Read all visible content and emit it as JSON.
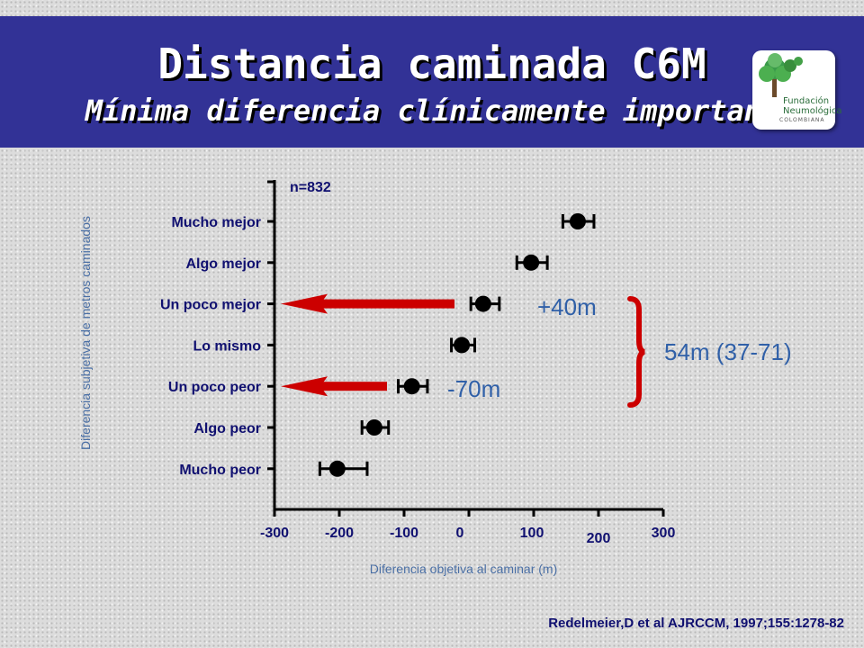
{
  "header": {
    "title": "Distancia caminada C6M",
    "subtitle": "Mínima diferencia clínicamente important",
    "logo": {
      "line1": "Fundación",
      "line2": "Neumológica",
      "line3": "COLOMBIANA",
      "icon": "tree-icon",
      "color": "#2c8a3c"
    }
  },
  "citation": "Redelmeier,D et al AJRCCM, 1997;155:1278-82",
  "chart_data": {
    "type": "scatter",
    "subtype": "dot-with-error-bars",
    "title": "",
    "xlabel": "Diferencia objetiva al caminar (m)",
    "ylabel": "Diferencia subjetiva de metros caminados",
    "xlim": [
      -300,
      300
    ],
    "x_ticks": [
      "-300",
      "-200",
      "-100",
      "0",
      "100",
      "200",
      "300"
    ],
    "categories": [
      "Mucho mejor",
      "Algo mejor",
      "Un poco mejor",
      "Lo mismo",
      "Un poco peor",
      "Algo peor",
      "Mucho peor"
    ],
    "points": [
      {
        "category": "Mucho mejor",
        "value": 168,
        "low": 145,
        "high": 193
      },
      {
        "category": "Algo mejor",
        "value": 96,
        "low": 74,
        "high": 121
      },
      {
        "category": "Un poco mejor",
        "value": 22,
        "low": 3,
        "high": 47
      },
      {
        "category": "Lo mismo",
        "value": -11,
        "low": -27,
        "high": 9
      },
      {
        "category": "Un poco peor",
        "value": -88,
        "low": -109,
        "high": -64
      },
      {
        "category": "Algo peor",
        "value": -146,
        "low": -165,
        "high": -124
      },
      {
        "category": "Mucho peor",
        "value": -203,
        "low": -230,
        "high": -157
      }
    ],
    "annotations": {
      "n": "n=832",
      "plus": "+40m",
      "minus": "-70m",
      "range": "54m (37-71)",
      "arrow_color": "#cc0000"
    },
    "grid": false,
    "legend": "none",
    "colors": {
      "points": "#000000",
      "labels_blue": "#101070",
      "annotation_blue": "#3060a8"
    }
  }
}
